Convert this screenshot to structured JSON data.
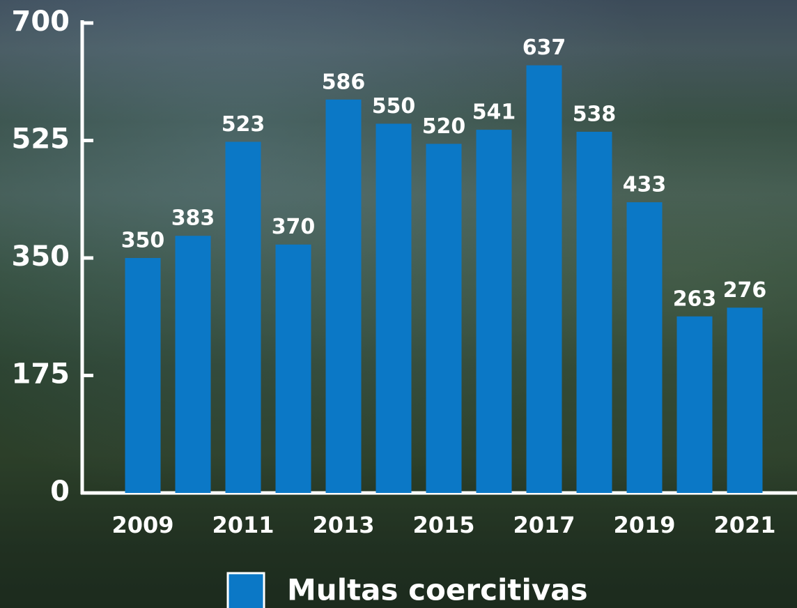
{
  "chart_data": {
    "type": "bar",
    "categories": [
      "2009",
      null,
      "2011",
      null,
      "2013",
      null,
      "2015",
      null,
      "2017",
      null,
      "2019",
      null,
      "2021"
    ],
    "series": [
      {
        "name": "Multas coercitivas",
        "color": "#0b78c6",
        "values": [
          350,
          383,
          523,
          370,
          586,
          550,
          520,
          541,
          637,
          538,
          433,
          263,
          276
        ]
      }
    ],
    "ylim": [
      0,
      700
    ],
    "yticks": [
      0,
      175,
      350,
      525,
      700
    ],
    "grid": false,
    "legend": "bottom"
  }
}
